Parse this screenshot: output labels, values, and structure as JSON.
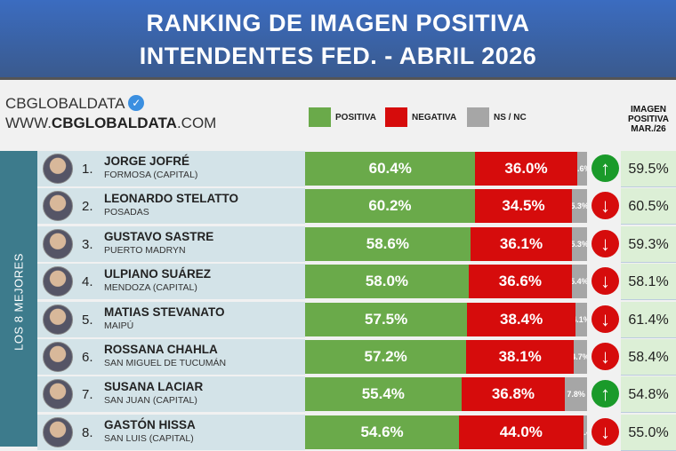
{
  "header": {
    "line1": "RANKING DE IMAGEN POSITIVA",
    "line2": "INTENDENTES FED. - ABRIL 2026"
  },
  "brand": {
    "name": "CBGLOBALDATA",
    "url_prefix": "WWW.",
    "url_bold": "CBGLOBALDATA",
    "url_suffix": ".COM",
    "verified_icon": "verified-badge-icon"
  },
  "legend": [
    {
      "label": "POSITIVA",
      "color": "#6aaa4a"
    },
    {
      "label": "NEGATIVA",
      "color": "#d60c0c"
    },
    {
      "label": "NS / NC",
      "color": "#a6a6a6"
    }
  ],
  "prev_header": [
    "IMAGEN",
    "POSITIVA",
    "MAR./26"
  ],
  "side_label": "LOS 8 MEJORES",
  "colors": {
    "up": "#1a9a2a",
    "down": "#d60c0c"
  },
  "rows": [
    {
      "rank": "1.",
      "name": "JORGE JOFRÉ",
      "city": "FORMOSA (CAPITAL)",
      "pos": 60.4,
      "neg": 36.0,
      "ns": 3.6,
      "pos_label": "60.4%",
      "neg_label": "36.0%",
      "ns_label": "3.6%",
      "trend": "up",
      "prev": "59.5%"
    },
    {
      "rank": "2.",
      "name": "LEONARDO STELATTO",
      "city": "POSADAS",
      "pos": 60.2,
      "neg": 34.5,
      "ns": 5.3,
      "pos_label": "60.2%",
      "neg_label": "34.5%",
      "ns_label": "5.3%",
      "trend": "down",
      "prev": "60.5%"
    },
    {
      "rank": "3.",
      "name": "GUSTAVO SASTRE",
      "city": "PUERTO MADRYN",
      "pos": 58.6,
      "neg": 36.1,
      "ns": 5.3,
      "pos_label": "58.6%",
      "neg_label": "36.1%",
      "ns_label": "5.3%",
      "trend": "down",
      "prev": "59.3%"
    },
    {
      "rank": "4.",
      "name": "ULPIANO SUÁREZ",
      "city": "MENDOZA (CAPITAL)",
      "pos": 58.0,
      "neg": 36.6,
      "ns": 5.4,
      "pos_label": "58.0%",
      "neg_label": "36.6%",
      "ns_label": "5.4%",
      "trend": "down",
      "prev": "58.1%"
    },
    {
      "rank": "5.",
      "name": "MATIAS STEVANATO",
      "city": "MAIPÚ",
      "pos": 57.5,
      "neg": 38.4,
      "ns": 4.1,
      "pos_label": "57.5%",
      "neg_label": "38.4%",
      "ns_label": "4.1%",
      "trend": "down",
      "prev": "61.4%"
    },
    {
      "rank": "6.",
      "name": "ROSSANA CHAHLA",
      "city": "SAN MIGUEL DE TUCUMÁN",
      "pos": 57.2,
      "neg": 38.1,
      "ns": 4.7,
      "pos_label": "57.2%",
      "neg_label": "38.1%",
      "ns_label": "4.7%",
      "trend": "down",
      "prev": "58.4%"
    },
    {
      "rank": "7.",
      "name": "SUSANA LACIAR",
      "city": "SAN JUAN (CAPITAL)",
      "pos": 55.4,
      "neg": 36.8,
      "ns": 7.8,
      "pos_label": "55.4%",
      "neg_label": "36.8%",
      "ns_label": "7.8%",
      "trend": "up",
      "prev": "54.8%"
    },
    {
      "rank": "8.",
      "name": "GASTÓN HISSA",
      "city": "SAN LUIS (CAPITAL)",
      "pos": 54.6,
      "neg": 44.0,
      "ns": 1.4,
      "pos_label": "54.6%",
      "neg_label": "44.0%",
      "ns_label": "1.4",
      "trend": "down",
      "prev": "55.0%"
    }
  ]
}
